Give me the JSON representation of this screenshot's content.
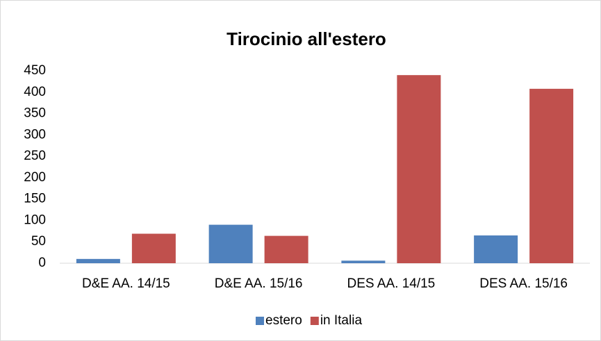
{
  "chart_data": {
    "type": "bar",
    "title": "Tirocinio all'estero",
    "categories": [
      "D&E AA. 14/15",
      "D&E AA. 15/16",
      "DES AA. 14/15",
      "DES AA. 15/16"
    ],
    "series": [
      {
        "name": "estero",
        "color": "#4f81bd",
        "values": [
          10,
          90,
          6,
          65
        ]
      },
      {
        "name": "in Italia",
        "color": "#c0504d",
        "values": [
          69,
          64,
          440,
          408
        ]
      }
    ],
    "ylim": [
      0,
      450
    ],
    "yticks": [
      0,
      50,
      100,
      150,
      200,
      250,
      300,
      350,
      400,
      450
    ],
    "grid": false,
    "legend": "bottom"
  }
}
